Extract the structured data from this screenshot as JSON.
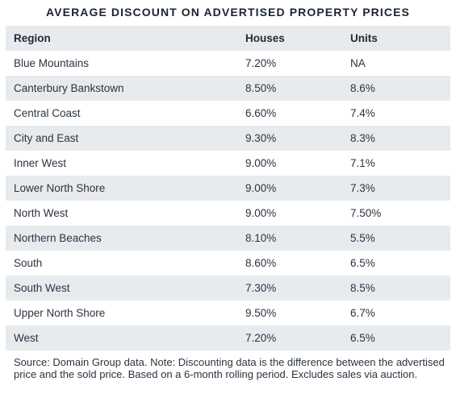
{
  "title": "AVERAGE DISCOUNT ON ADVERTISED PROPERTY PRICES",
  "columns": [
    "Region",
    "Houses",
    "Units"
  ],
  "rows": [
    [
      "Blue Mountains",
      "7.20%",
      "NA"
    ],
    [
      "Canterbury Bankstown",
      "8.50%",
      "8.6%"
    ],
    [
      "Central Coast",
      "6.60%",
      "7.4%"
    ],
    [
      "City and East",
      "9.30%",
      "8.3%"
    ],
    [
      "Inner West",
      "9.00%",
      "7.1%"
    ],
    [
      "Lower North Shore",
      "9.00%",
      "7.3%"
    ],
    [
      "North West",
      "9.00%",
      "7.50%"
    ],
    [
      "Northern Beaches",
      "8.10%",
      "5.5%"
    ],
    [
      "South",
      "8.60%",
      "6.5%"
    ],
    [
      "South West",
      "7.30%",
      "8.5%"
    ],
    [
      "Upper North Shore",
      "9.50%",
      "6.7%"
    ],
    [
      "West",
      "7.20%",
      "6.5%"
    ]
  ],
  "note": "Source: Domain Group data. Note: Discounting data is the difference between the advertised price and the sold price. Based on a 6-month rolling period. Excludes sales via auction."
}
